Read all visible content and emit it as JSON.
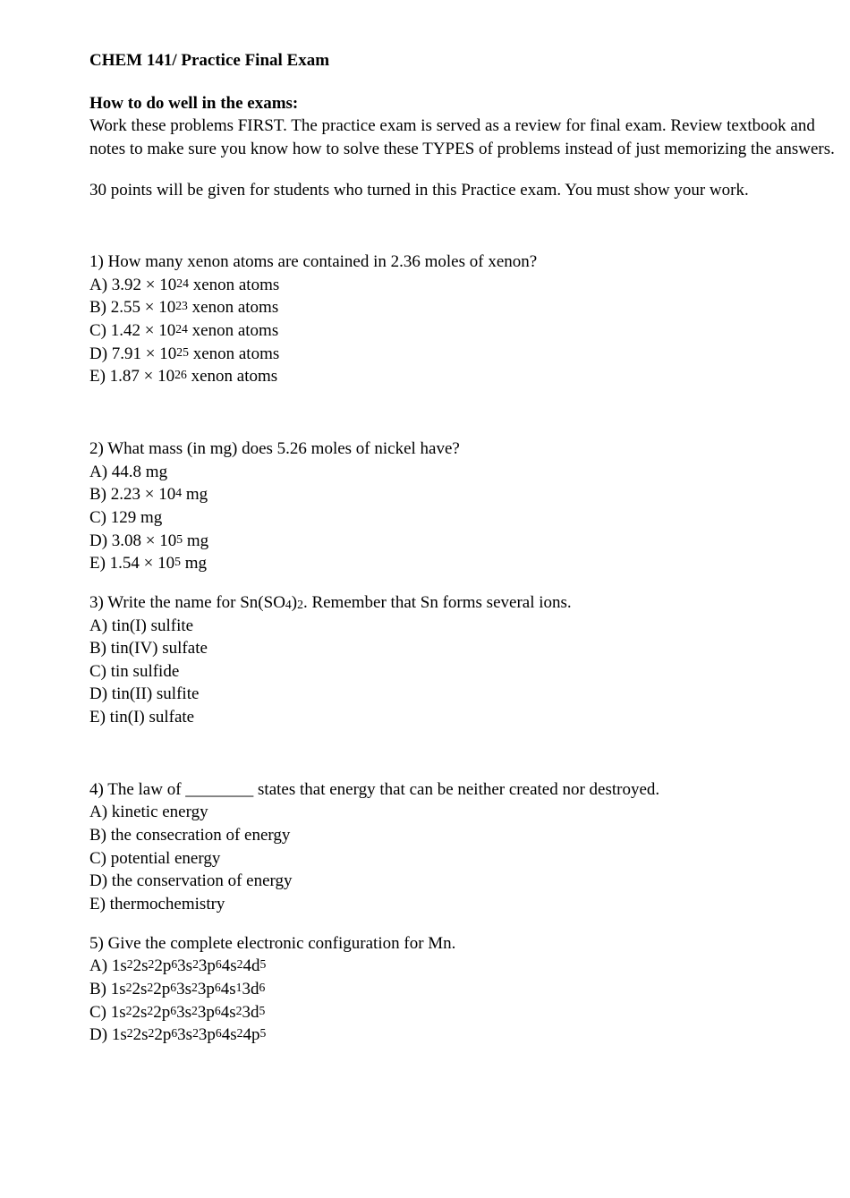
{
  "title": "CHEM 141/ Practice Final Exam",
  "subtitle": "How to do well in the exams:",
  "intro": "Work these problems FIRST. The practice exam is served as a review for final exam. Review textbook and notes to make sure you know how to solve these TYPES of problems instead of just memorizing the answers.",
  "points": "30 points will be given for students who turned in this Practice exam. You must show your work.",
  "questions": [
    {
      "q": "1) How many xenon atoms are contained in 2.36 moles of xenon?",
      "options": [
        {
          "pre": "A) 3.92 × 10",
          "sup": "24",
          "post": " xenon atoms"
        },
        {
          "pre": "B) 2.55 × 10",
          "sup": "23",
          "post": " xenon atoms"
        },
        {
          "pre": "C) 1.42 × 10",
          "sup": "24",
          "post": " xenon atoms"
        },
        {
          "pre": "D) 7.91 × 10",
          "sup": "25",
          "post": " xenon atoms"
        },
        {
          "pre": "E) 1.87 × 10",
          "sup": "26",
          "post": " xenon atoms"
        }
      ],
      "gapAfter": true
    },
    {
      "q": "2) What mass (in mg) does 5.26 moles of nickel have?",
      "options": [
        {
          "pre": "A) 44.8 mg",
          "sup": "",
          "post": ""
        },
        {
          "pre": "B) 2.23 × 10",
          "sup": "4",
          "post": " mg"
        },
        {
          "pre": "C) 129 mg",
          "sup": "",
          "post": ""
        },
        {
          "pre": "D) 3.08 × 10",
          "sup": "5",
          "post": " mg"
        },
        {
          "pre": "E) 1.54 × 10",
          "sup": "5",
          "post": " mg"
        }
      ],
      "gapAfter": false
    },
    {
      "q_parts": [
        {
          "t": "3) Write the name for Sn(SO"
        },
        {
          "sub": "4"
        },
        {
          "t": ")"
        },
        {
          "sub": "2"
        },
        {
          "t": ".  Remember that Sn forms several ions."
        }
      ],
      "options": [
        {
          "pre": "A) tin(I) sulfite",
          "sup": "",
          "post": ""
        },
        {
          "pre": "B) tin(IV) sulfate",
          "sup": "",
          "post": ""
        },
        {
          "pre": "C) tin sulfide",
          "sup": "",
          "post": ""
        },
        {
          "pre": "D) tin(II) sulfite",
          "sup": "",
          "post": ""
        },
        {
          "pre": "E) tin(I) sulfate",
          "sup": "",
          "post": ""
        }
      ],
      "gapAfter": true
    },
    {
      "q": "4) The law of ________ states that energy that can be neither created nor destroyed.",
      "options": [
        {
          "pre": "A) kinetic energy",
          "sup": "",
          "post": ""
        },
        {
          "pre": "B) the consecration of energy",
          "sup": "",
          "post": ""
        },
        {
          "pre": "C) potential energy",
          "sup": "",
          "post": ""
        },
        {
          "pre": "D) the conservation of energy",
          "sup": "",
          "post": ""
        },
        {
          "pre": "E) thermochemistry",
          "sup": "",
          "post": ""
        }
      ],
      "gapAfter": false
    },
    {
      "q": "5) Give the complete electronic configuration for Mn.",
      "ec_options": [
        {
          "label": "A) ",
          "config": [
            [
              "1s",
              "2"
            ],
            [
              "2s",
              "2"
            ],
            [
              "2p",
              "6"
            ],
            [
              "3s",
              "2"
            ],
            [
              "3p",
              "6"
            ],
            [
              "4s",
              "2"
            ],
            [
              "4d",
              "5"
            ]
          ]
        },
        {
          "label": "B) ",
          "config": [
            [
              "1s",
              "2"
            ],
            [
              "2s",
              "2"
            ],
            [
              "2p",
              "6"
            ],
            [
              "3s",
              "2"
            ],
            [
              "3p",
              "6"
            ],
            [
              "4s",
              "1"
            ],
            [
              "3d",
              "6"
            ]
          ]
        },
        {
          "label": "C) ",
          "config": [
            [
              "1s",
              "2"
            ],
            [
              "2s",
              "2"
            ],
            [
              "2p",
              "6"
            ],
            [
              "3s",
              "2"
            ],
            [
              "3p",
              "6"
            ],
            [
              "4s",
              "2"
            ],
            [
              "3d",
              "5"
            ]
          ]
        },
        {
          "label": "D) ",
          "config": [
            [
              "1s",
              "2"
            ],
            [
              "2s",
              "2"
            ],
            [
              "2p",
              "6"
            ],
            [
              "3s",
              "2"
            ],
            [
              "3p",
              "6"
            ],
            [
              "4s",
              "2"
            ],
            [
              "4p",
              "5"
            ]
          ]
        }
      ],
      "gapAfter": false
    }
  ]
}
